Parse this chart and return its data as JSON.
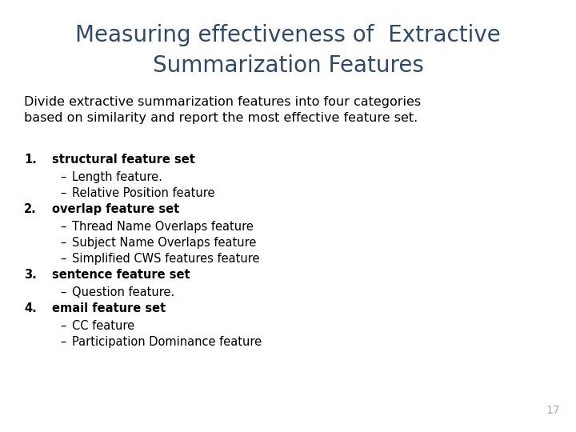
{
  "title_line1": "Measuring effectiveness of  Extractive",
  "title_line2": "Summarization Features",
  "title_color": "#2E4A6B",
  "bg_color": "#FFFFFF",
  "subtitle_line1": "Divide extractive summarization features into four categories",
  "subtitle_line2": "based on similarity and report the most effective feature set.",
  "subtitle_color": "#000000",
  "body_items": [
    {
      "num": "1.",
      "bold_text": "structural feature set",
      "sub_items": [
        "Length feature.",
        "Relative Position feature"
      ]
    },
    {
      "num": "2.",
      "bold_text": "overlap feature set",
      "sub_items": [
        "Thread Name Overlaps feature",
        "Subject Name Overlaps feature",
        "Simplified CWS features feature"
      ]
    },
    {
      "num": "3.",
      "bold_text": "sentence feature set",
      "sub_items": [
        "Question feature."
      ]
    },
    {
      "num": "4.",
      "bold_text": "email feature set",
      "sub_items": [
        "CC feature",
        "Participation Dominance feature"
      ]
    }
  ],
  "page_number": "17",
  "page_num_color": "#AAAAAA",
  "title_fontsize": 20,
  "subtitle_fontsize": 11.5,
  "body_fontsize": 10.5,
  "num_fontsize": 10.5
}
